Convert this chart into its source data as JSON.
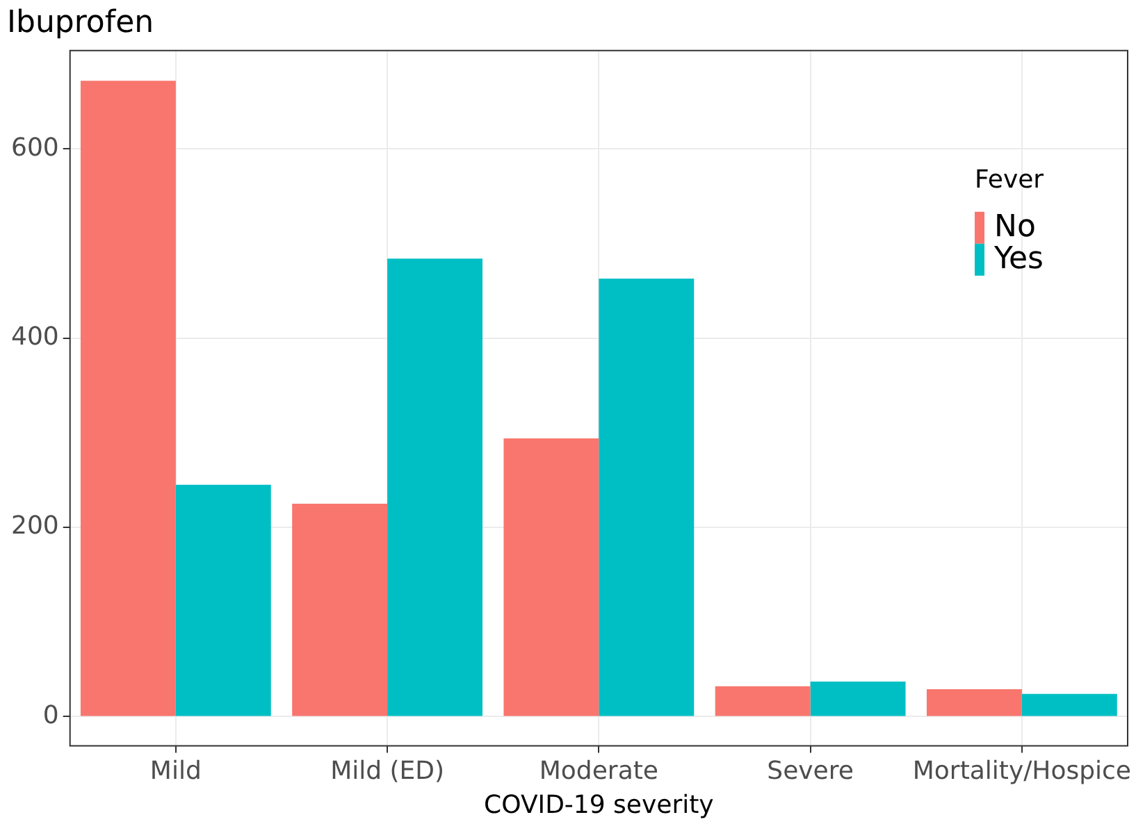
{
  "chart_data": {
    "type": "bar",
    "title": "Ibuprofen",
    "xlabel": "COVID-19 severity",
    "legend_title": "Fever",
    "categories": [
      "Mild",
      "Mild (ED)",
      "Moderate",
      "Severe",
      "Mortality/Hospice"
    ],
    "series": [
      {
        "name": "No",
        "color": "#f8766d",
        "values": [
          672,
          225,
          294,
          32,
          29
        ]
      },
      {
        "name": "Yes",
        "color": "#00bfc4",
        "values": [
          245,
          484,
          463,
          37,
          24
        ]
      }
    ],
    "ylim": [
      -31,
      704
    ],
    "yticks": [
      0,
      200,
      400,
      600
    ],
    "grid": true,
    "legend": "top right"
  }
}
